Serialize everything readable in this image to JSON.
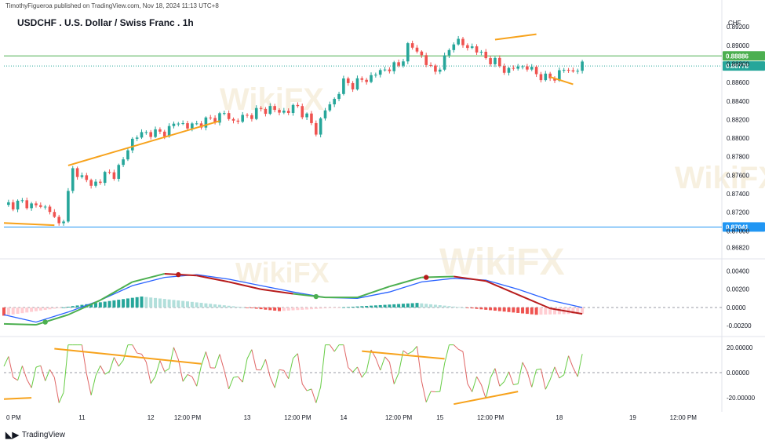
{
  "header": {
    "published_by": "TimothyFigueroa published on TradingView.com, Nov 18, 2024 11:13 UTC+8",
    "title": "USDCHF . U.S. Dollar / Swiss Franc . 1h",
    "currency": "CHF"
  },
  "footer": {
    "brand": "TradingView",
    "watermark": "WikiFX"
  },
  "colors": {
    "up": "#26a69a",
    "down": "#ef5350",
    "support": "#2196f3",
    "resistance": "#4caf50",
    "trendline": "#f7a21b",
    "macd_line": "#2962ff",
    "signal_up": "#4caf50",
    "signal_down": "#b71c1c",
    "momentum_up": "#66cc44",
    "momentum_down": "#e06666"
  },
  "chart_data": [
    {
      "type": "candlestick",
      "title": "USDCHF . U.S. Dollar / Swiss Franc . 1h",
      "ylabel": "CHF",
      "ylim": [
        0.8674,
        0.8932
      ],
      "y_ticks": [
        "0.89200",
        "0.89000",
        "0.88800",
        "0.88600",
        "0.88400",
        "0.88200",
        "0.88000",
        "0.87800",
        "0.87600",
        "0.87400",
        "0.87200",
        "0.87000",
        "0.86820"
      ],
      "x_ticks": [
        "0 PM",
        "11",
        "12",
        "12:00 PM",
        "13",
        "12:00 PM",
        "14",
        "12:00 PM",
        "15",
        "12:00 PM",
        "18",
        "19",
        "12:00 PM"
      ],
      "close_path": [
        [
          0,
          0.8728
        ],
        [
          4,
          0.873
        ],
        [
          8,
          0.8726
        ],
        [
          10,
          0.8724
        ],
        [
          11,
          0.8712
        ],
        [
          12,
          0.8706
        ],
        [
          13,
          0.8716
        ],
        [
          14,
          0.874
        ],
        [
          15,
          0.8765
        ],
        [
          16,
          0.8762
        ],
        [
          18,
          0.8755
        ],
        [
          19,
          0.8748
        ],
        [
          20,
          0.8752
        ],
        [
          22,
          0.876
        ],
        [
          24,
          0.8762
        ],
        [
          25,
          0.8768
        ],
        [
          26,
          0.8775
        ],
        [
          27,
          0.879
        ],
        [
          28,
          0.8798
        ],
        [
          30,
          0.8805
        ],
        [
          32,
          0.8806
        ],
        [
          34,
          0.8805
        ],
        [
          36,
          0.881
        ],
        [
          38,
          0.8818
        ],
        [
          40,
          0.8812
        ],
        [
          42,
          0.8815
        ],
        [
          44,
          0.8818
        ],
        [
          46,
          0.8822
        ],
        [
          48,
          0.8826
        ],
        [
          50,
          0.8818
        ],
        [
          52,
          0.8822
        ],
        [
          54,
          0.8826
        ],
        [
          56,
          0.883
        ],
        [
          58,
          0.8832
        ],
        [
          60,
          0.8828
        ],
        [
          62,
          0.883
        ],
        [
          64,
          0.8834
        ],
        [
          66,
          0.8822
        ],
        [
          68,
          0.8808
        ],
        [
          70,
          0.883
        ],
        [
          72,
          0.8842
        ],
        [
          74,
          0.886
        ],
        [
          76,
          0.8858
        ],
        [
          78,
          0.8862
        ],
        [
          80,
          0.8866
        ],
        [
          82,
          0.8872
        ],
        [
          84,
          0.8876
        ],
        [
          86,
          0.8878
        ],
        [
          88,
          0.8898
        ],
        [
          90,
          0.8896
        ],
        [
          92,
          0.888
        ],
        [
          94,
          0.8872
        ],
        [
          96,
          0.8884
        ],
        [
          98,
          0.8906
        ],
        [
          100,
          0.89
        ],
        [
          102,
          0.8898
        ],
        [
          104,
          0.889
        ],
        [
          106,
          0.8884
        ],
        [
          108,
          0.8878
        ],
        [
          110,
          0.8872
        ],
        [
          112,
          0.8878
        ],
        [
          114,
          0.8876
        ],
        [
          116,
          0.887
        ],
        [
          118,
          0.8864
        ],
        [
          120,
          0.8866
        ],
        [
          122,
          0.8874
        ],
        [
          124,
          0.8872
        ],
        [
          126,
          0.8878
        ]
      ],
      "last_price": "0.88778",
      "price_lines": [
        {
          "label": "0.88886",
          "value": 0.88886,
          "role": "resistance"
        },
        {
          "label": "0.88778",
          "value": 0.88778,
          "role": "last"
        },
        {
          "label": "0.87041",
          "value": 0.87041,
          "role": "support"
        }
      ],
      "trendlines": [
        {
          "from": [
            0,
            0.87085
          ],
          "to": [
            11,
            0.8706
          ]
        },
        {
          "from": [
            14,
            0.87705
          ],
          "to": [
            47,
            0.88185
          ]
        },
        {
          "from": [
            107,
            0.89062
          ],
          "to": [
            116,
            0.8912
          ]
        },
        {
          "from": [
            119,
            0.8866
          ],
          "to": [
            124,
            0.8858
          ]
        }
      ]
    },
    {
      "type": "line",
      "name": "MACD panel",
      "ylim": [
        -0.0031,
        0.0049
      ],
      "y_ticks": [
        "0.00400",
        "0.00200",
        "0.0000",
        "-0.00200"
      ],
      "macd": [
        [
          0,
          -0.0008
        ],
        [
          8,
          -0.0016
        ],
        [
          16,
          -0.0005
        ],
        [
          24,
          0.0008
        ],
        [
          32,
          0.0024
        ],
        [
          40,
          0.0033
        ],
        [
          48,
          0.0036
        ],
        [
          56,
          0.0031
        ],
        [
          64,
          0.0024
        ],
        [
          72,
          0.0017
        ],
        [
          80,
          0.0011
        ],
        [
          88,
          0.001
        ],
        [
          96,
          0.0017
        ],
        [
          104,
          0.0028
        ],
        [
          112,
          0.0032
        ],
        [
          120,
          0.003
        ],
        [
          128,
          0.002
        ],
        [
          136,
          0.0008
        ],
        [
          144,
          0.0
        ]
      ],
      "signal": [
        [
          0,
          -0.0018
        ],
        [
          8,
          -0.0019
        ],
        [
          16,
          -0.0008
        ],
        [
          24,
          0.0008
        ],
        [
          32,
          0.0028
        ],
        [
          40,
          0.0037
        ],
        [
          48,
          0.0035
        ],
        [
          56,
          0.0028
        ],
        [
          64,
          0.002
        ],
        [
          72,
          0.0015
        ],
        [
          80,
          0.0011
        ],
        [
          88,
          0.0011
        ],
        [
          96,
          0.0023
        ],
        [
          104,
          0.0033
        ],
        [
          112,
          0.0034
        ],
        [
          120,
          0.0029
        ],
        [
          128,
          0.0014
        ],
        [
          136,
          -0.0001
        ],
        [
          144,
          -0.0007
        ]
      ],
      "histogram_range": [
        [
          0,
          -0.0009
        ],
        [
          30,
          0.0012
        ],
        [
          60,
          -0.0004
        ],
        [
          90,
          0.0005
        ],
        [
          116,
          -0.0008
        ],
        [
          140,
          -0.0005
        ]
      ],
      "cross_markers": [
        [
          9,
          -0.0016,
          "up"
        ],
        [
          38,
          0.0036,
          "down"
        ],
        [
          68,
          0.0012,
          "up"
        ],
        [
          92,
          0.0033,
          "down"
        ]
      ]
    },
    {
      "type": "line",
      "name": "Momentum oscillator",
      "ylim": [
        -28,
        28
      ],
      "y_ticks": [
        "20.00000",
        "0.00000",
        "-20.00000"
      ],
      "trendlines": [
        {
          "from": [
            0,
            -21
          ],
          "to": [
            6,
            -20
          ]
        },
        {
          "from": [
            11,
            19
          ],
          "to": [
            43,
            7
          ]
        },
        {
          "from": [
            78,
            17
          ],
          "to": [
            96,
            11
          ]
        },
        {
          "from": [
            98,
            -25
          ],
          "to": [
            112,
            -15
          ]
        }
      ]
    }
  ]
}
